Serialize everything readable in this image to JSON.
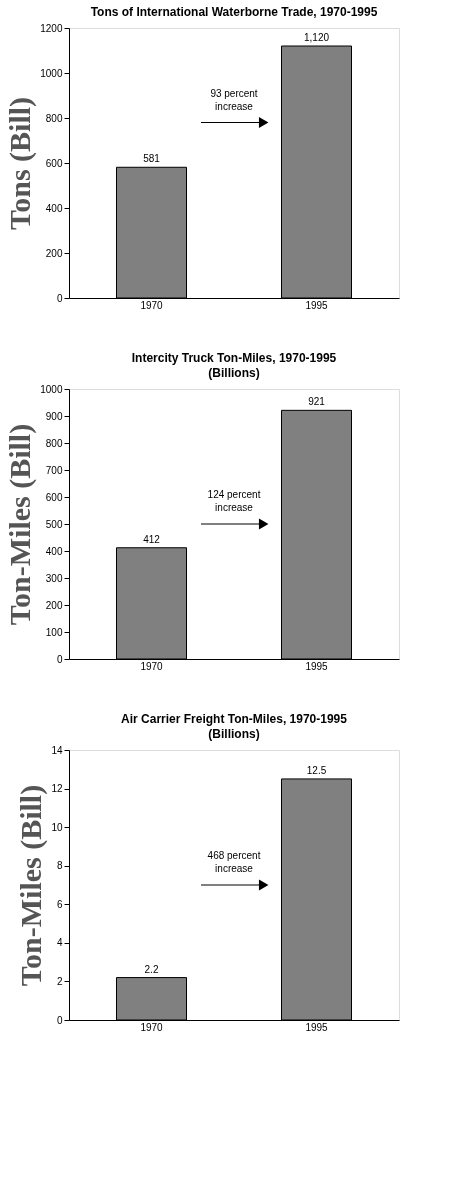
{
  "chart_data": [
    {
      "type": "bar",
      "title": "Tons of International Waterborne Trade, 1970-1995",
      "ylabel": "Tons (Bill)",
      "categories": [
        "1970",
        "1995"
      ],
      "values": [
        581,
        1120
      ],
      "value_labels": [
        "581",
        "1,120"
      ],
      "color": "#808080",
      "ylim": [
        0,
        1200
      ],
      "yticks": [
        0,
        200,
        400,
        600,
        800,
        1000,
        1200
      ],
      "annotations": [
        "93 percent increase"
      ],
      "grid": false
    },
    {
      "type": "bar",
      "title": "Intercity Truck Ton-Miles, 1970-1995",
      "subtitle": "(Billions)",
      "ylabel": "Ton-Miles (Bill)",
      "categories": [
        "1970",
        "1995"
      ],
      "values": [
        412,
        921
      ],
      "value_labels": [
        "412",
        "921"
      ],
      "color": "#808080",
      "ylim": [
        0,
        1000
      ],
      "yticks": [
        0,
        100,
        200,
        300,
        400,
        500,
        600,
        700,
        800,
        900,
        1000
      ],
      "annotations": [
        "124 percent increase"
      ],
      "grid": false
    },
    {
      "type": "bar",
      "title": "Air Carrier Freight Ton-Miles, 1970-1995",
      "subtitle": "(Billions)",
      "ylabel": "Ton-Miles (Bill)",
      "categories": [
        "1970",
        "1995"
      ],
      "values": [
        2.2,
        12.5
      ],
      "value_labels": [
        "2.2",
        "12.5"
      ],
      "color": "#808080",
      "ylim": [
        0,
        14
      ],
      "yticks": [
        0,
        2,
        4,
        6,
        8,
        10,
        12,
        14
      ],
      "annotations": [
        "468 percent increase"
      ],
      "grid": false
    }
  ]
}
